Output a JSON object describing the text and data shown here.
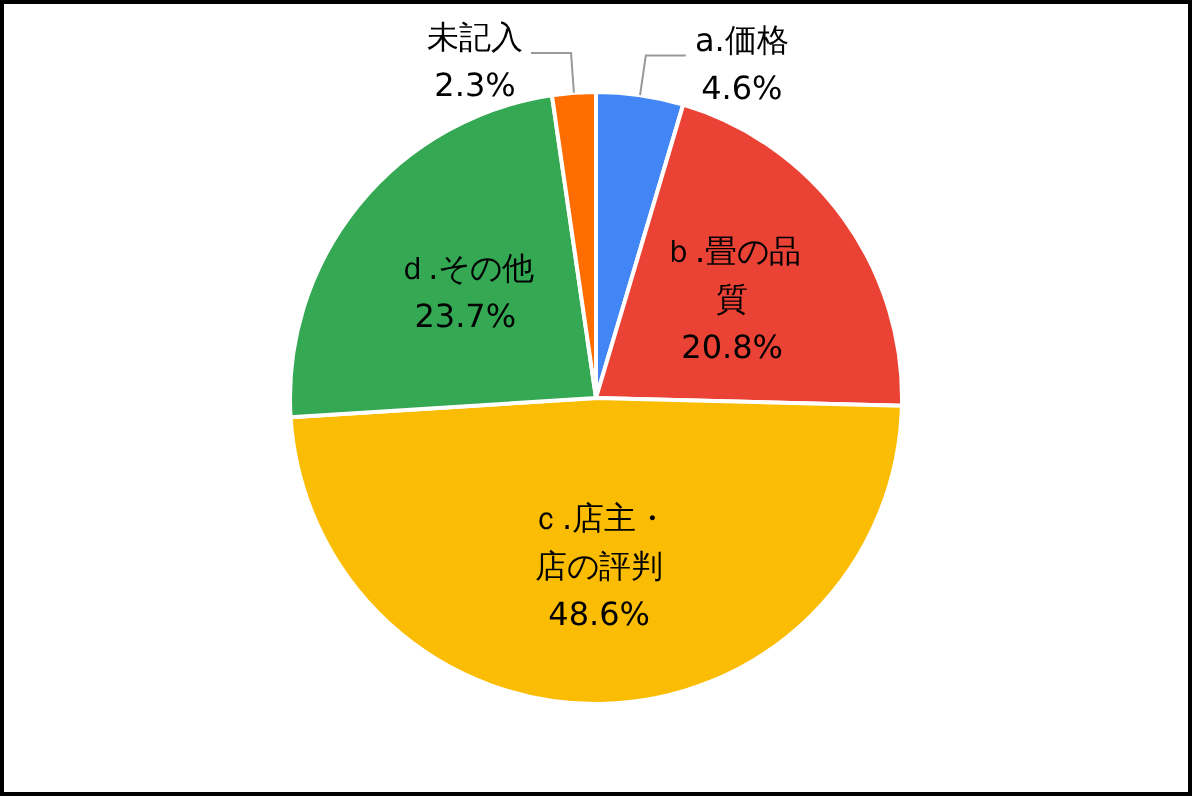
{
  "chart_data": {
    "type": "pie",
    "categories": [
      "a.価格",
      "ｂ.畳の品質",
      "ｃ.店主・店の評判",
      "ｄ.その他",
      "未記入"
    ],
    "values": [
      4.6,
      20.8,
      48.6,
      23.7,
      2.3
    ],
    "colors": [
      "#4285f4",
      "#ea4335",
      "#fbbc04",
      "#34a853",
      "#ff6d01"
    ],
    "value_labels": [
      "4.6%",
      "20.8%",
      "48.6%",
      "23.7%",
      "2.3%"
    ]
  }
}
